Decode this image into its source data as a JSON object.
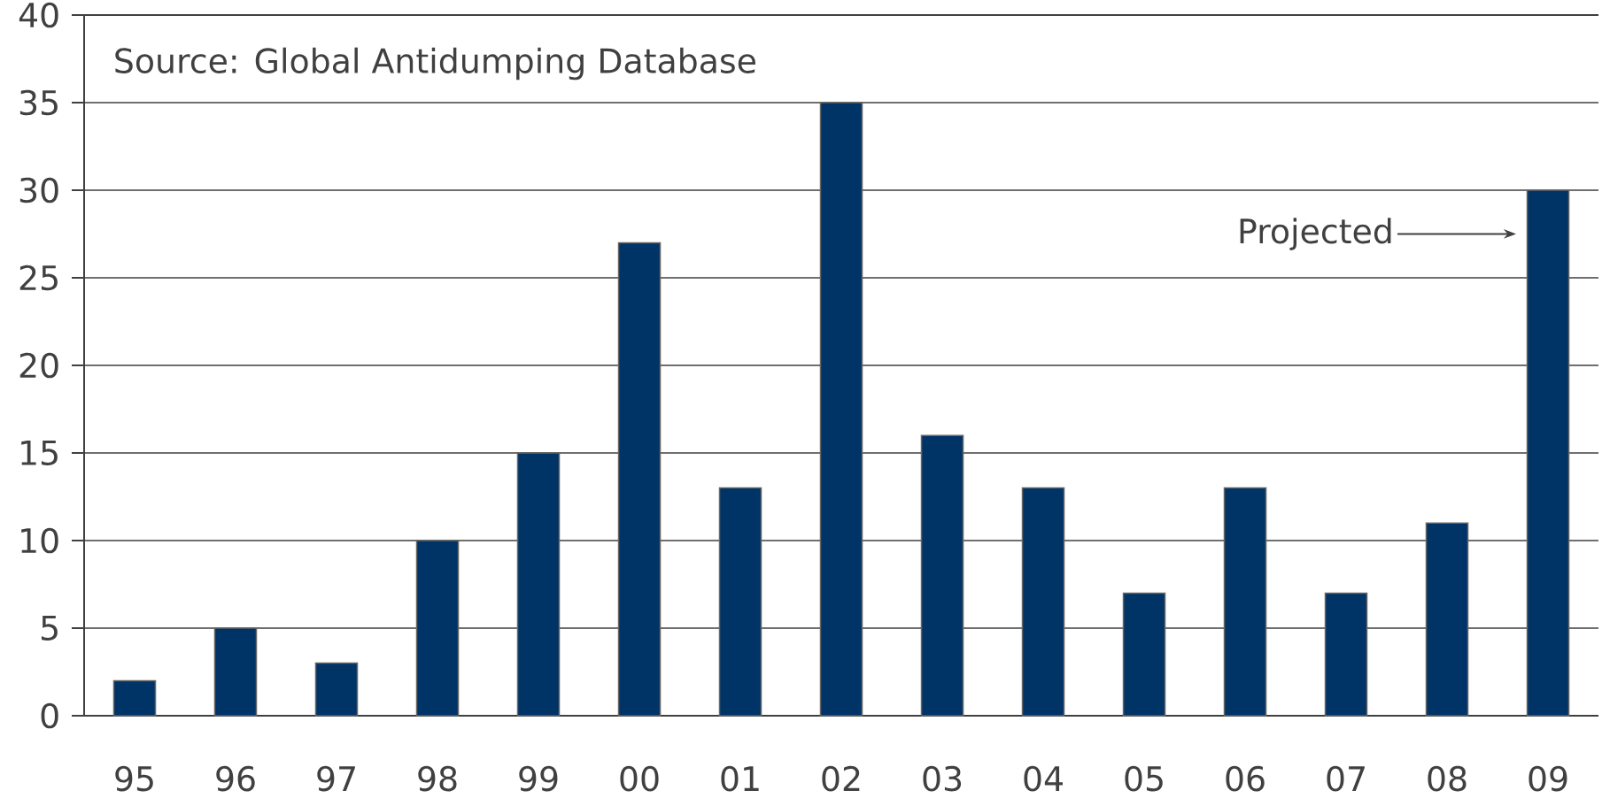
{
  "chart_data": {
    "type": "bar",
    "categories": [
      "95",
      "96",
      "97",
      "98",
      "99",
      "00",
      "01",
      "02",
      "03",
      "04",
      "05",
      "06",
      "07",
      "08",
      "09"
    ],
    "values": [
      2,
      5,
      3,
      10,
      15,
      27,
      13,
      35,
      16,
      13,
      7,
      13,
      7,
      11,
      30
    ],
    "color": "#003366",
    "ylim": [
      0,
      40
    ],
    "yticks": [
      0,
      5,
      10,
      15,
      20,
      25,
      30,
      35,
      40
    ],
    "grid": "y",
    "annotations": [
      "Source: Global Antidumping Database",
      "Projected"
    ]
  }
}
